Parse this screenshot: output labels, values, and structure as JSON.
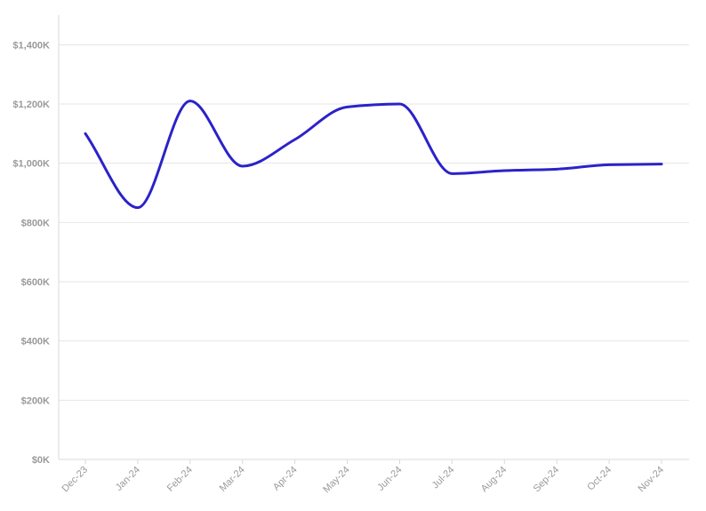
{
  "chart_data": {
    "type": "line",
    "title": "",
    "xlabel": "",
    "ylabel": "",
    "categories": [
      "Dec-23",
      "Jan-24",
      "Feb-24",
      "Mar-24",
      "Apr-24",
      "May-24",
      "Jun-24",
      "Jul-24",
      "Aug-24",
      "Sep-24",
      "Oct-24",
      "Nov-24"
    ],
    "series": [
      {
        "values": [
          1100000,
          850000,
          1210000,
          990000,
          1080000,
          1190000,
          1200000,
          965000,
          975000,
          980000,
          995000,
          997000
        ],
        "color": "#2b22c9"
      }
    ],
    "ylim": [
      0,
      1500000
    ],
    "yticks": [
      0,
      200000,
      400000,
      600000,
      800000,
      1000000,
      1200000,
      1400000
    ],
    "ytick_labels": [
      "$0K",
      "$200K",
      "$400K",
      "$600K",
      "$800K",
      "$1,000K",
      "$1,200K",
      "$1,400K"
    ],
    "grid": true,
    "legend": "none",
    "curve": "smooth"
  }
}
